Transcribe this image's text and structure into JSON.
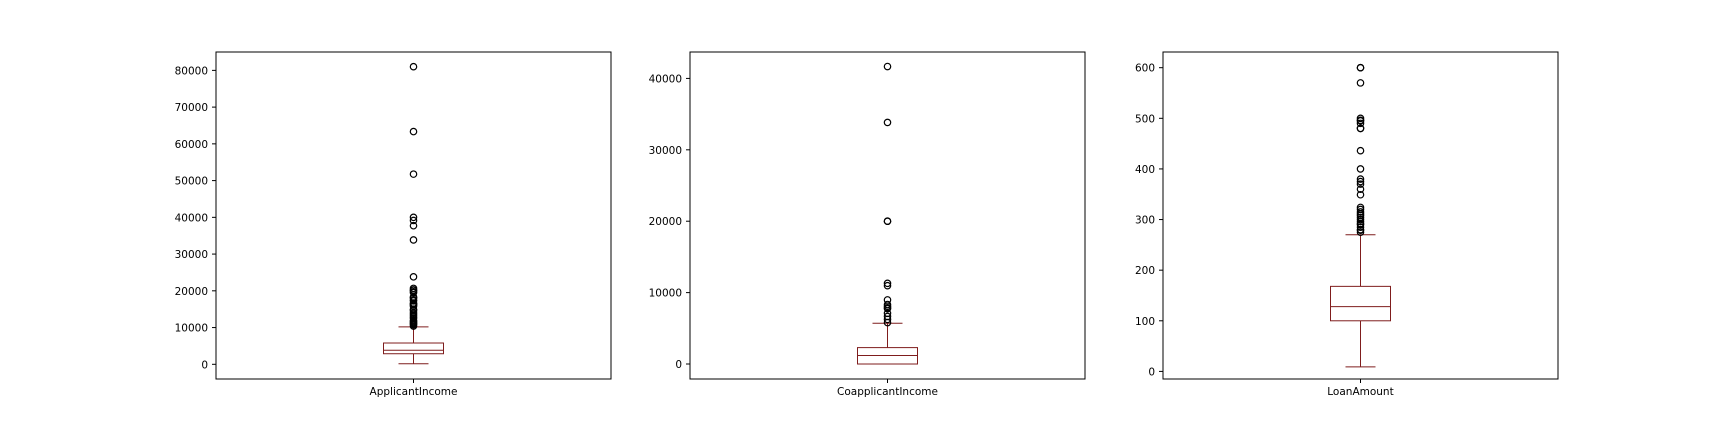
{
  "chart_data": [
    {
      "type": "box",
      "category": "ApplicantIncome",
      "ylim": [
        -4000,
        85000
      ],
      "yticks": [
        0,
        10000,
        20000,
        30000,
        40000,
        50000,
        60000,
        70000,
        80000
      ],
      "box": {
        "whislo": 150,
        "q1": 2877,
        "med": 3812,
        "q3": 5795,
        "whishi": 10171
      },
      "fliers": [
        10400,
        10750,
        11000,
        11250,
        11500,
        11757,
        12000,
        12500,
        12841,
        13262,
        13650,
        14000,
        14583,
        14866,
        15000,
        15759,
        16120,
        16250,
        16525,
        16666,
        17263,
        17500,
        18000,
        18165,
        18333,
        19484,
        19730,
        20166,
        20233,
        20667,
        23803,
        33846,
        37719,
        39147,
        39999,
        51763,
        63337,
        81000
      ]
    },
    {
      "type": "box",
      "category": "CoapplicantIncome",
      "ylim": [
        -2100,
        43700
      ],
      "yticks": [
        0,
        10000,
        20000,
        30000,
        40000
      ],
      "box": {
        "whislo": 0,
        "q1": 0,
        "med": 1188,
        "q3": 2297,
        "whishi": 5701
      },
      "fliers": [
        5800,
        6250,
        6666,
        7101,
        7750,
        7873,
        8106,
        8333,
        8980,
        10968,
        11300,
        20000,
        20000,
        33837,
        41667
      ]
    },
    {
      "type": "box",
      "category": "LoanAmount",
      "ylim": [
        -15,
        631
      ],
      "yticks": [
        0,
        100,
        200,
        300,
        400,
        500,
        600
      ],
      "box": {
        "whislo": 9,
        "q1": 100,
        "med": 128,
        "q3": 168,
        "whishi": 270
      },
      "fliers": [
        275,
        279,
        280,
        285,
        290,
        292,
        296,
        300,
        304,
        308,
        311,
        315,
        320,
        324,
        349,
        360,
        370,
        375,
        380,
        400,
        436,
        480,
        480,
        490,
        495,
        496,
        500,
        570,
        600,
        600
      ]
    }
  ],
  "colors": {
    "box": "#7f1d1d",
    "flier": "#000000",
    "frame": "#000000"
  }
}
